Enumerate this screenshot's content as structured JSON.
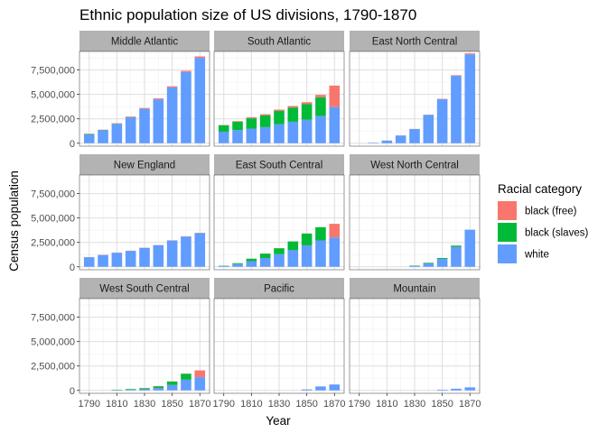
{
  "chart_data": {
    "type": "bar",
    "stacked": true,
    "title": "Ethnic population size of US divisions, 1790-1870",
    "xlabel": "Year",
    "ylabel": "Census population",
    "x": [
      1790,
      1800,
      1810,
      1820,
      1830,
      1840,
      1850,
      1860,
      1870
    ],
    "x_tick_labels": [
      "1790",
      "1810",
      "1830",
      "1850",
      "1870"
    ],
    "y_ticks": [
      0,
      2500000,
      5000000,
      7500000
    ],
    "y_tick_labels": [
      "0",
      "2,500,000",
      "5,000,000",
      "7,500,000"
    ],
    "ylim": [
      -300000,
      9400000
    ],
    "grid": true,
    "legend": {
      "title": "Racial category",
      "placement": "right",
      "entries": [
        {
          "name": "black (free)",
          "color": "#F8766D"
        },
        {
          "name": "black (slaves)",
          "color": "#00BA38"
        },
        {
          "name": "white",
          "color": "#619CFF"
        }
      ]
    },
    "facet_order": [
      "white",
      "black (slaves)",
      "black (free)"
    ],
    "facets": [
      {
        "name": "Middle Atlantic",
        "series": [
          {
            "name": "white",
            "values": [
              900000,
              1320000,
              1970000,
              2650000,
              3520000,
              4490000,
              5720000,
              7300000,
              8740000
            ]
          },
          {
            "name": "black (slaves)",
            "values": [
              45000,
              35000,
              25000,
              15000,
              3000,
              1000,
              0,
              0,
              0
            ]
          },
          {
            "name": "black (free)",
            "values": [
              20000,
              30000,
              50000,
              65000,
              85000,
              100000,
              110000,
              120000,
              150000
            ]
          }
        ]
      },
      {
        "name": "South Atlantic",
        "series": [
          {
            "name": "white",
            "values": [
              1180000,
              1350000,
              1500000,
              1650000,
              1950000,
              2200000,
              2400000,
              2800000,
              3700000
            ]
          },
          {
            "name": "black (slaves)",
            "values": [
              650000,
              850000,
              1050000,
              1200000,
              1350000,
              1450000,
              1600000,
              1900000,
              0
            ]
          },
          {
            "name": "black (free)",
            "values": [
              30000,
              60000,
              100000,
              120000,
              140000,
              160000,
              200000,
              250000,
              2200000
            ]
          }
        ]
      },
      {
        "name": "East North Central",
        "series": [
          {
            "name": "white",
            "values": [
              0,
              50000,
              270000,
              790000,
              1450000,
              2900000,
              4500000,
              6900000,
              9100000
            ]
          },
          {
            "name": "black (slaves)",
            "values": [
              0,
              0,
              0,
              0,
              0,
              0,
              0,
              0,
              0
            ]
          },
          {
            "name": "black (free)",
            "values": [
              0,
              0,
              5000,
              10000,
              15000,
              25000,
              40000,
              60000,
              100000
            ]
          }
        ]
      },
      {
        "name": "New England",
        "series": [
          {
            "name": "white",
            "values": [
              980000,
              1210000,
              1440000,
              1630000,
              1930000,
              2200000,
              2690000,
              3100000,
              3450000
            ]
          },
          {
            "name": "black (slaves)",
            "values": [
              3000,
              0,
              0,
              0,
              0,
              0,
              0,
              0,
              0
            ]
          },
          {
            "name": "black (free)",
            "values": [
              15000,
              18000,
              20000,
              22000,
              24000,
              25000,
              26000,
              27000,
              30000
            ]
          }
        ]
      },
      {
        "name": "East South Central",
        "series": [
          {
            "name": "white",
            "values": [
              100000,
              280000,
              580000,
              900000,
              1300000,
              1700000,
              2200000,
              2700000,
              3000000
            ]
          },
          {
            "name": "black (slaves)",
            "values": [
              20000,
              90000,
              250000,
              450000,
              600000,
              900000,
              1200000,
              1350000,
              0
            ]
          },
          {
            "name": "black (free)",
            "values": [
              0,
              5000,
              5000,
              10000,
              10000,
              10000,
              10000,
              10000,
              1400000
            ]
          }
        ]
      },
      {
        "name": "West North Central",
        "series": [
          {
            "name": "white",
            "values": [
              0,
              0,
              0,
              0,
              100000,
              350000,
              800000,
              2050000,
              3800000
            ]
          },
          {
            "name": "black (slaves)",
            "values": [
              0,
              0,
              0,
              0,
              30000,
              60000,
              100000,
              120000,
              0
            ]
          },
          {
            "name": "black (free)",
            "values": [
              0,
              0,
              0,
              0,
              0,
              0,
              0,
              0,
              0
            ]
          }
        ]
      },
      {
        "name": "West South Central",
        "series": [
          {
            "name": "white",
            "values": [
              0,
              0,
              30000,
              60000,
              120000,
              250000,
              550000,
              1100000,
              1350000
            ]
          },
          {
            "name": "black (slaves)",
            "values": [
              0,
              0,
              35000,
              70000,
              100000,
              170000,
              350000,
              600000,
              0
            ]
          },
          {
            "name": "black (free)",
            "values": [
              0,
              0,
              10000,
              10000,
              20000,
              25000,
              20000,
              20000,
              700000
            ]
          }
        ]
      },
      {
        "name": "Pacific",
        "series": [
          {
            "name": "white",
            "values": [
              0,
              0,
              0,
              0,
              0,
              0,
              100000,
              400000,
              600000
            ]
          },
          {
            "name": "black (slaves)",
            "values": [
              0,
              0,
              0,
              0,
              0,
              0,
              0,
              0,
              0
            ]
          },
          {
            "name": "black (free)",
            "values": [
              0,
              0,
              0,
              0,
              0,
              0,
              0,
              5000,
              5000
            ]
          }
        ]
      },
      {
        "name": "Mountain",
        "series": [
          {
            "name": "white",
            "values": [
              0,
              0,
              0,
              0,
              0,
              0,
              70000,
              170000,
              310000
            ]
          },
          {
            "name": "black (slaves)",
            "values": [
              0,
              0,
              0,
              0,
              0,
              0,
              0,
              0,
              0
            ]
          },
          {
            "name": "black (free)",
            "values": [
              0,
              0,
              0,
              0,
              0,
              0,
              0,
              0,
              0
            ]
          }
        ]
      }
    ]
  }
}
